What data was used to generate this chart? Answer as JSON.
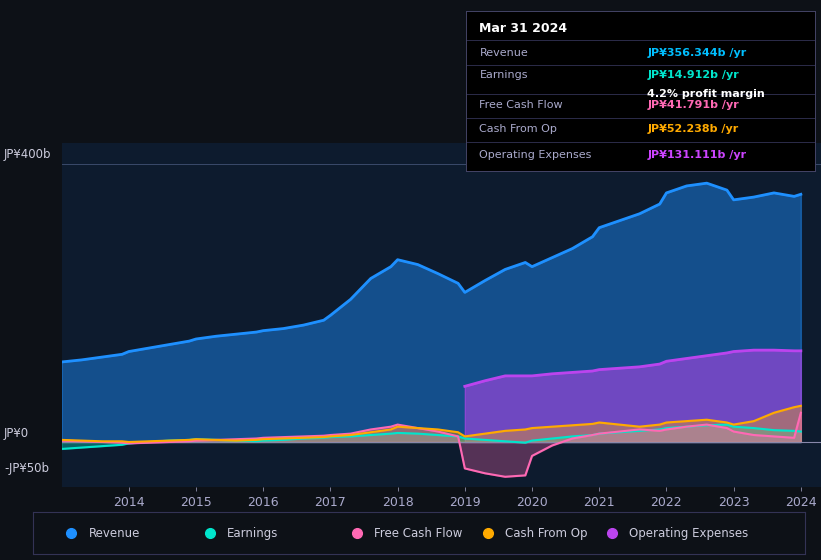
{
  "bg_color": "#0d1117",
  "plot_bg_color": "#0d1b2e",
  "grid_color": "#2a3a5a",
  "ylabel_400": "JP¥400b",
  "ylabel_0": "JP¥0",
  "ylabel_neg50": "-JP¥50b",
  "ylim": [
    -65,
    430
  ],
  "info_box": {
    "date": "Mar 31 2024",
    "revenue_label": "Revenue",
    "revenue_value": "JP¥356.344b /yr",
    "revenue_color": "#00bfff",
    "earnings_label": "Earnings",
    "earnings_value": "JP¥14.912b /yr",
    "earnings_color": "#00e5cc",
    "margin_text": "4.2% profit margin",
    "fcf_label": "Free Cash Flow",
    "fcf_value": "JP¥41.791b /yr",
    "fcf_color": "#ff69b4",
    "cashop_label": "Cash From Op",
    "cashop_value": "JP¥52.238b /yr",
    "cashop_color": "#ffaa00",
    "opex_label": "Operating Expenses",
    "opex_value": "JP¥131.111b /yr",
    "opex_color": "#cc44ff"
  },
  "revenue_color": "#1e90ff",
  "earnings_color": "#00e5cc",
  "fcf_color": "#ff69b4",
  "cashop_color": "#ffaa00",
  "opex_color": "#bb44ee",
  "legend": [
    {
      "label": "Revenue",
      "color": "#1e90ff"
    },
    {
      "label": "Earnings",
      "color": "#00e5cc"
    },
    {
      "label": "Free Cash Flow",
      "color": "#ff69b4"
    },
    {
      "label": "Cash From Op",
      "color": "#ffaa00"
    },
    {
      "label": "Operating Expenses",
      "color": "#bb44ee"
    }
  ],
  "revenue_x": [
    2013.0,
    2013.3,
    2013.6,
    2013.9,
    2014.0,
    2014.3,
    2014.6,
    2014.9,
    2015.0,
    2015.3,
    2015.6,
    2015.9,
    2016.0,
    2016.3,
    2016.6,
    2016.9,
    2017.0,
    2017.3,
    2017.6,
    2017.9,
    2018.0,
    2018.3,
    2018.6,
    2018.9,
    2019.0,
    2019.3,
    2019.6,
    2019.9,
    2020.0,
    2020.3,
    2020.6,
    2020.9,
    2021.0,
    2021.3,
    2021.6,
    2021.9,
    2022.0,
    2022.3,
    2022.6,
    2022.9,
    2023.0,
    2023.3,
    2023.6,
    2023.9,
    2024.0
  ],
  "revenue_y": [
    115,
    118,
    122,
    126,
    130,
    135,
    140,
    145,
    148,
    152,
    155,
    158,
    160,
    163,
    168,
    175,
    182,
    205,
    235,
    252,
    262,
    255,
    242,
    228,
    215,
    232,
    248,
    258,
    252,
    265,
    278,
    295,
    308,
    318,
    328,
    342,
    358,
    368,
    372,
    362,
    348,
    352,
    358,
    353,
    356
  ],
  "earnings_x": [
    2013.0,
    2013.3,
    2013.6,
    2013.9,
    2014.0,
    2014.3,
    2014.6,
    2014.9,
    2015.0,
    2015.3,
    2015.6,
    2015.9,
    2016.0,
    2016.3,
    2016.6,
    2016.9,
    2017.0,
    2017.3,
    2017.6,
    2017.9,
    2018.0,
    2018.3,
    2018.6,
    2018.9,
    2019.0,
    2019.3,
    2019.6,
    2019.9,
    2020.0,
    2020.3,
    2020.6,
    2020.9,
    2021.0,
    2021.3,
    2021.6,
    2021.9,
    2022.0,
    2022.3,
    2022.6,
    2022.9,
    2023.0,
    2023.3,
    2023.6,
    2023.9,
    2024.0
  ],
  "earnings_y": [
    -10,
    -8,
    -6,
    -4,
    -2,
    0,
    2,
    3,
    4,
    3,
    2,
    1,
    2,
    3,
    5,
    6,
    7,
    8,
    10,
    12,
    13,
    12,
    10,
    8,
    5,
    3,
    1,
    -1,
    2,
    5,
    8,
    10,
    12,
    14,
    16,
    18,
    20,
    22,
    24,
    25,
    22,
    20,
    17,
    16,
    15
  ],
  "fcf_x": [
    2013.0,
    2013.3,
    2013.6,
    2013.9,
    2014.0,
    2014.3,
    2014.6,
    2014.9,
    2015.0,
    2015.3,
    2015.6,
    2015.9,
    2016.0,
    2016.3,
    2016.6,
    2016.9,
    2017.0,
    2017.3,
    2017.6,
    2017.9,
    2018.0,
    2018.3,
    2018.6,
    2018.9,
    2019.0,
    2019.3,
    2019.6,
    2019.9,
    2020.0,
    2020.3,
    2020.6,
    2020.9,
    2021.0,
    2021.3,
    2021.6,
    2021.9,
    2022.0,
    2022.3,
    2022.6,
    2022.9,
    2023.0,
    2023.3,
    2023.6,
    2023.9,
    2024.0
  ],
  "fcf_y": [
    2,
    1,
    0,
    -1,
    -2,
    -1,
    0,
    1,
    2,
    3,
    4,
    5,
    6,
    7,
    8,
    9,
    10,
    12,
    18,
    22,
    25,
    20,
    15,
    8,
    -38,
    -45,
    -50,
    -48,
    -20,
    -5,
    5,
    10,
    12,
    15,
    18,
    16,
    18,
    22,
    25,
    20,
    15,
    10,
    8,
    6,
    42
  ],
  "cashop_x": [
    2013.0,
    2013.3,
    2013.6,
    2013.9,
    2014.0,
    2014.3,
    2014.6,
    2014.9,
    2015.0,
    2015.3,
    2015.6,
    2015.9,
    2016.0,
    2016.3,
    2016.6,
    2016.9,
    2017.0,
    2017.3,
    2017.6,
    2017.9,
    2018.0,
    2018.3,
    2018.6,
    2018.9,
    2019.0,
    2019.3,
    2019.6,
    2019.9,
    2020.0,
    2020.3,
    2020.6,
    2020.9,
    2021.0,
    2021.3,
    2021.6,
    2021.9,
    2022.0,
    2022.3,
    2022.6,
    2022.9,
    2023.0,
    2023.3,
    2023.6,
    2023.9,
    2024.0
  ],
  "cashop_y": [
    3,
    2,
    1,
    1,
    0,
    1,
    2,
    3,
    4,
    3,
    2,
    3,
    4,
    5,
    6,
    7,
    8,
    10,
    14,
    18,
    22,
    20,
    18,
    14,
    8,
    12,
    16,
    18,
    20,
    22,
    24,
    26,
    28,
    25,
    22,
    25,
    28,
    30,
    32,
    28,
    25,
    30,
    42,
    50,
    52
  ],
  "opex_x": [
    2019.0,
    2019.3,
    2019.6,
    2019.9,
    2020.0,
    2020.3,
    2020.6,
    2020.9,
    2021.0,
    2021.3,
    2021.6,
    2021.9,
    2022.0,
    2022.3,
    2022.6,
    2022.9,
    2023.0,
    2023.3,
    2023.6,
    2023.9,
    2024.0
  ],
  "opex_y": [
    80,
    88,
    95,
    95,
    95,
    98,
    100,
    102,
    104,
    106,
    108,
    112,
    116,
    120,
    124,
    128,
    130,
    132,
    132,
    131,
    131
  ]
}
